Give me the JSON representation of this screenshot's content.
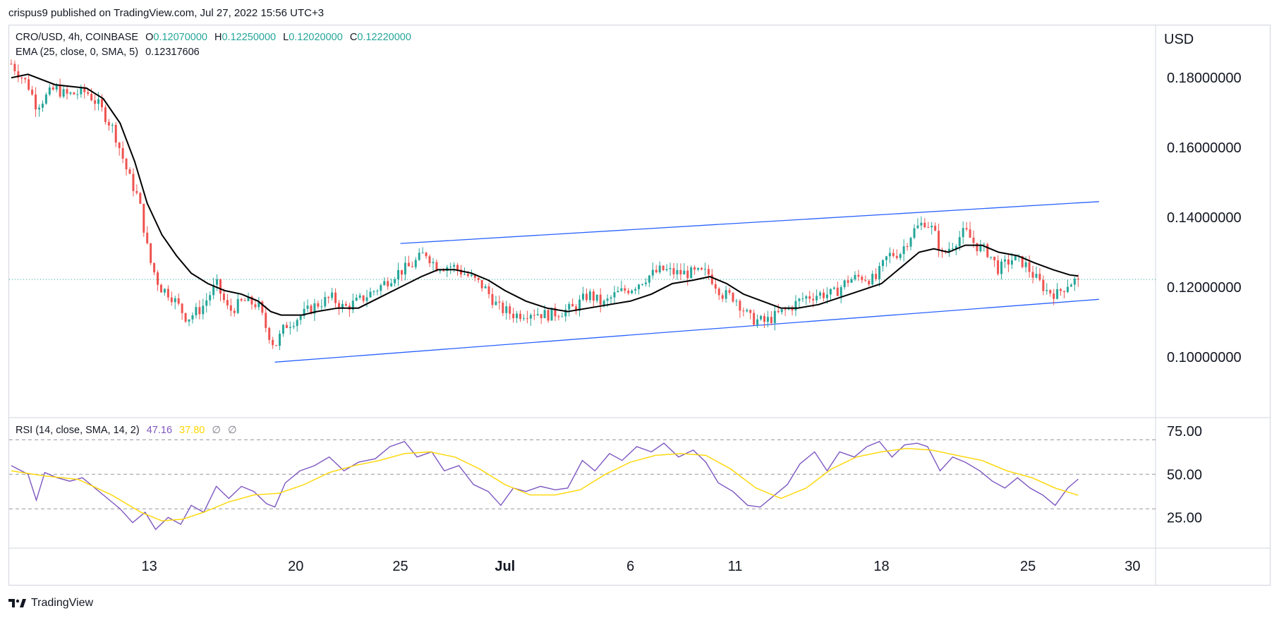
{
  "header": {
    "published": "crispus9 published on TradingView.com, Jul 27, 2022 15:56 UTC+3"
  },
  "footer": {
    "brand": "TradingView"
  },
  "legend": {
    "symbol": "CRO/USD, 4h, COINBASE",
    "o_label": "O",
    "o": "0.12070000",
    "h_label": "H",
    "h": "0.12250000",
    "l_label": "L",
    "l": "0.12020000",
    "c_label": "C",
    "c": "0.12220000",
    "ema_label": "EMA (25, close, 0, SMA, 5)",
    "ema": "0.12317606",
    "rsi_label": "RSI (14, close, SMA, 14, 2)",
    "rsi": "47.16",
    "rsi_ma": "37.80",
    "rsi_extra1": "∅",
    "rsi_extra2": "∅"
  },
  "colors": {
    "up": "#26a69a",
    "down": "#ef5350",
    "ema": "#000000",
    "channel": "#2962ff",
    "rsi": "#7e57c2",
    "rsi_ma": "#ffd600",
    "last_price": "#26a69a"
  },
  "chart_data": [
    {
      "type": "candlestick",
      "title": "CRO/USD, 4h, COINBASE",
      "y_unit": "USD",
      "ylim": [
        0.083,
        0.195
      ],
      "y_ticks": [
        "0.10000000",
        "0.12000000",
        "0.14000000",
        "0.16000000",
        "0.18000000"
      ],
      "y_tick_values": [
        0.1,
        0.12,
        0.14,
        0.16,
        0.18
      ],
      "x_range_days": [
        6.3,
        30.6
      ],
      "x_tick_labels": [
        "13",
        "20",
        "25",
        "Jul",
        "6",
        "11",
        "18",
        "25",
        "30"
      ],
      "x_tick_days": [
        13,
        20,
        25,
        30,
        36,
        41,
        48,
        55,
        60
      ],
      "last_close": 0.1222,
      "ema_last": 0.12317606,
      "close_waypoints": [
        [
          6.4,
          0.184
        ],
        [
          7.2,
          0.178
        ],
        [
          7.6,
          0.172
        ],
        [
          8.5,
          0.177
        ],
        [
          9.0,
          0.175
        ],
        [
          10.0,
          0.176
        ],
        [
          10.6,
          0.172
        ],
        [
          11.3,
          0.165
        ],
        [
          12.0,
          0.152
        ],
        [
          12.5,
          0.145
        ],
        [
          13.0,
          0.128
        ],
        [
          13.5,
          0.12
        ],
        [
          14.0,
          0.118
        ],
        [
          14.8,
          0.111
        ],
        [
          15.5,
          0.114
        ],
        [
          16.2,
          0.121
        ],
        [
          16.8,
          0.113
        ],
        [
          17.5,
          0.116
        ],
        [
          18.2,
          0.115
        ],
        [
          18.6,
          0.108
        ],
        [
          19.0,
          0.103
        ],
        [
          19.5,
          0.109
        ],
        [
          20.3,
          0.112
        ],
        [
          21.0,
          0.115
        ],
        [
          21.7,
          0.117
        ],
        [
          22.3,
          0.114
        ],
        [
          23.0,
          0.116
        ],
        [
          24.0,
          0.12
        ],
        [
          24.8,
          0.124
        ],
        [
          25.5,
          0.126
        ],
        [
          26.2,
          0.13
        ],
        [
          26.7,
          0.126
        ],
        [
          27.5,
          0.126
        ],
        [
          28.3,
          0.123
        ],
        [
          29.0,
          0.12
        ],
        [
          29.7,
          0.114
        ],
        [
          30.5,
          0.112
        ],
        [
          31.3,
          0.113
        ],
        [
          32.0,
          0.112
        ],
        [
          32.7,
          0.113
        ],
        [
          33.3,
          0.114
        ],
        [
          34.0,
          0.118
        ],
        [
          34.7,
          0.115
        ],
        [
          35.3,
          0.118
        ],
        [
          36.1,
          0.12
        ],
        [
          36.8,
          0.123
        ],
        [
          37.5,
          0.125
        ],
        [
          38.2,
          0.124
        ],
        [
          39.0,
          0.124
        ],
        [
          39.7,
          0.124
        ],
        [
          40.4,
          0.118
        ],
        [
          41.0,
          0.117
        ],
        [
          41.7,
          0.111
        ],
        [
          42.4,
          0.11
        ],
        [
          43.0,
          0.112
        ],
        [
          43.6,
          0.114
        ],
        [
          44.3,
          0.117
        ],
        [
          45.0,
          0.118
        ],
        [
          45.7,
          0.118
        ],
        [
          46.4,
          0.122
        ],
        [
          47.0,
          0.123
        ],
        [
          47.7,
          0.122
        ],
        [
          48.3,
          0.129
        ],
        [
          48.9,
          0.13
        ],
        [
          49.5,
          0.136
        ],
        [
          50.1,
          0.139
        ],
        [
          50.5,
          0.136
        ],
        [
          50.9,
          0.129
        ],
        [
          51.5,
          0.133
        ],
        [
          52.0,
          0.136
        ],
        [
          52.5,
          0.132
        ],
        [
          53.1,
          0.13
        ],
        [
          53.6,
          0.125
        ],
        [
          54.2,
          0.128
        ],
        [
          54.8,
          0.127
        ],
        [
          55.3,
          0.123
        ],
        [
          55.9,
          0.119
        ],
        [
          56.4,
          0.118
        ],
        [
          56.9,
          0.121
        ],
        [
          57.4,
          0.1222
        ]
      ],
      "ema_waypoints": [
        [
          6.4,
          0.18
        ],
        [
          7.2,
          0.181
        ],
        [
          8.5,
          0.178
        ],
        [
          10.0,
          0.177
        ],
        [
          10.8,
          0.174
        ],
        [
          11.6,
          0.167
        ],
        [
          12.3,
          0.156
        ],
        [
          12.9,
          0.144
        ],
        [
          13.6,
          0.135
        ],
        [
          14.3,
          0.129
        ],
        [
          15.0,
          0.124
        ],
        [
          15.8,
          0.121
        ],
        [
          16.6,
          0.119
        ],
        [
          17.4,
          0.118
        ],
        [
          18.2,
          0.116
        ],
        [
          18.8,
          0.113
        ],
        [
          19.3,
          0.112
        ],
        [
          20.3,
          0.112
        ],
        [
          21.0,
          0.113
        ],
        [
          22.0,
          0.114
        ],
        [
          23.0,
          0.114
        ],
        [
          24.0,
          0.117
        ],
        [
          25.0,
          0.12
        ],
        [
          26.0,
          0.123
        ],
        [
          26.8,
          0.125
        ],
        [
          27.6,
          0.125
        ],
        [
          28.4,
          0.124
        ],
        [
          29.2,
          0.122
        ],
        [
          30.0,
          0.119
        ],
        [
          31.0,
          0.116
        ],
        [
          32.0,
          0.114
        ],
        [
          33.0,
          0.113
        ],
        [
          34.0,
          0.114
        ],
        [
          35.0,
          0.115
        ],
        [
          36.0,
          0.116
        ],
        [
          37.0,
          0.118
        ],
        [
          38.0,
          0.121
        ],
        [
          39.0,
          0.122
        ],
        [
          39.8,
          0.123
        ],
        [
          40.6,
          0.121
        ],
        [
          41.4,
          0.118
        ],
        [
          42.3,
          0.116
        ],
        [
          43.2,
          0.114
        ],
        [
          44.0,
          0.114
        ],
        [
          45.0,
          0.115
        ],
        [
          46.0,
          0.117
        ],
        [
          47.0,
          0.119
        ],
        [
          48.0,
          0.121
        ],
        [
          49.0,
          0.126
        ],
        [
          49.8,
          0.13
        ],
        [
          50.5,
          0.131
        ],
        [
          51.2,
          0.13
        ],
        [
          52.0,
          0.132
        ],
        [
          52.8,
          0.132
        ],
        [
          53.6,
          0.13
        ],
        [
          54.5,
          0.129
        ],
        [
          55.3,
          0.127
        ],
        [
          56.2,
          0.125
        ],
        [
          57.0,
          0.1235
        ],
        [
          57.4,
          0.1232
        ]
      ],
      "channel_upper": [
        [
          25.0,
          0.1325
        ],
        [
          58.4,
          0.1445
        ]
      ],
      "channel_lower": [
        [
          19.0,
          0.0985
        ],
        [
          58.4,
          0.1165
        ]
      ]
    },
    {
      "type": "line",
      "title": "RSI (14, close, SMA, 14, 2)",
      "ylim": [
        8,
        82
      ],
      "y_ticks": [
        "25.00",
        "50.00",
        "75.00"
      ],
      "y_tick_values": [
        25,
        50,
        75
      ],
      "levels": [
        30,
        50,
        70
      ],
      "series": [
        {
          "name": "RSI",
          "points": [
            [
              6.4,
              55
            ],
            [
              7.2,
              50
            ],
            [
              7.6,
              35
            ],
            [
              8.0,
              51
            ],
            [
              8.6,
              48
            ],
            [
              9.2,
              46
            ],
            [
              9.8,
              48
            ],
            [
              10.4,
              42
            ],
            [
              11.0,
              36
            ],
            [
              11.6,
              30
            ],
            [
              12.2,
              22
            ],
            [
              12.8,
              28
            ],
            [
              13.3,
              18
            ],
            [
              13.9,
              25
            ],
            [
              14.5,
              21
            ],
            [
              15.0,
              32
            ],
            [
              15.6,
              28
            ],
            [
              16.2,
              43
            ],
            [
              16.8,
              36
            ],
            [
              17.4,
              43
            ],
            [
              18.0,
              40
            ],
            [
              18.6,
              33
            ],
            [
              19.0,
              31
            ],
            [
              19.5,
              45
            ],
            [
              20.2,
              52
            ],
            [
              20.9,
              55
            ],
            [
              21.6,
              60
            ],
            [
              22.3,
              52
            ],
            [
              23.0,
              57
            ],
            [
              23.8,
              59
            ],
            [
              24.5,
              66
            ],
            [
              25.2,
              69
            ],
            [
              25.8,
              60
            ],
            [
              26.5,
              63
            ],
            [
              27.1,
              52
            ],
            [
              27.8,
              55
            ],
            [
              28.5,
              44
            ],
            [
              29.2,
              40
            ],
            [
              29.8,
              32
            ],
            [
              30.4,
              42
            ],
            [
              31.0,
              40
            ],
            [
              31.7,
              43
            ],
            [
              32.4,
              41
            ],
            [
              33.0,
              42
            ],
            [
              33.7,
              58
            ],
            [
              34.3,
              52
            ],
            [
              35.0,
              62
            ],
            [
              35.6,
              58
            ],
            [
              36.3,
              66
            ],
            [
              37.0,
              63
            ],
            [
              37.6,
              68
            ],
            [
              38.3,
              60
            ],
            [
              39.0,
              64
            ],
            [
              39.6,
              57
            ],
            [
              40.2,
              45
            ],
            [
              40.9,
              40
            ],
            [
              41.6,
              32
            ],
            [
              42.2,
              31
            ],
            [
              42.9,
              38
            ],
            [
              43.5,
              44
            ],
            [
              44.1,
              56
            ],
            [
              44.8,
              63
            ],
            [
              45.4,
              52
            ],
            [
              46.0,
              63
            ],
            [
              46.7,
              60
            ],
            [
              47.3,
              66
            ],
            [
              47.9,
              69
            ],
            [
              48.5,
              60
            ],
            [
              49.1,
              67
            ],
            [
              49.7,
              68
            ],
            [
              50.2,
              66
            ],
            [
              50.8,
              52
            ],
            [
              51.4,
              60
            ],
            [
              52.0,
              57
            ],
            [
              52.7,
              52
            ],
            [
              53.3,
              46
            ],
            [
              53.9,
              42
            ],
            [
              54.5,
              48
            ],
            [
              55.1,
              42
            ],
            [
              55.7,
              38
            ],
            [
              56.3,
              32
            ],
            [
              56.9,
              42
            ],
            [
              57.4,
              47.16
            ]
          ]
        },
        {
          "name": "RSI-based MA",
          "points": [
            [
              6.4,
              52
            ],
            [
              8.0,
              49
            ],
            [
              9.6,
              47
            ],
            [
              11.2,
              38
            ],
            [
              12.6,
              28
            ],
            [
              13.6,
              23
            ],
            [
              14.6,
              24
            ],
            [
              15.6,
              28
            ],
            [
              16.8,
              34
            ],
            [
              18.0,
              38
            ],
            [
              19.2,
              39
            ],
            [
              20.4,
              44
            ],
            [
              21.6,
              51
            ],
            [
              22.8,
              55
            ],
            [
              24.0,
              58
            ],
            [
              25.2,
              62
            ],
            [
              26.4,
              63
            ],
            [
              27.6,
              60
            ],
            [
              28.8,
              53
            ],
            [
              30.0,
              44
            ],
            [
              31.2,
              38
            ],
            [
              32.4,
              38
            ],
            [
              33.6,
              41
            ],
            [
              34.8,
              50
            ],
            [
              36.0,
              57
            ],
            [
              37.2,
              61
            ],
            [
              38.4,
              62
            ],
            [
              39.6,
              61
            ],
            [
              40.8,
              53
            ],
            [
              42.0,
              42
            ],
            [
              43.2,
              36
            ],
            [
              44.4,
              42
            ],
            [
              45.6,
              53
            ],
            [
              46.8,
              60
            ],
            [
              48.0,
              63
            ],
            [
              49.2,
              65
            ],
            [
              50.4,
              64
            ],
            [
              51.6,
              61
            ],
            [
              52.8,
              58
            ],
            [
              54.0,
              52
            ],
            [
              55.2,
              48
            ],
            [
              56.3,
              42
            ],
            [
              57.4,
              37.8
            ]
          ]
        }
      ]
    }
  ]
}
